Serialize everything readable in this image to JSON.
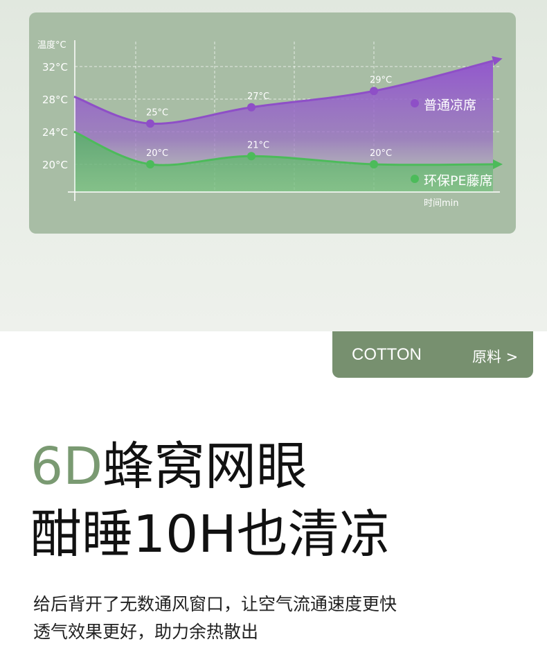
{
  "chart_data": {
    "type": "area",
    "ylabel": "温度°C",
    "xlabel": "时间min",
    "yticks": [
      "32°C",
      "28°C",
      "24°C",
      "20°C"
    ],
    "ytick_values": [
      32,
      28,
      24,
      20
    ],
    "ylim": [
      17,
      35
    ],
    "grid": true,
    "legend": "right",
    "series": [
      {
        "name": "普通凉席",
        "color": "#8e4fc7",
        "values": [
          28.3,
          25,
          27,
          29,
          32.7
        ],
        "labels": [
          "",
          "25°C",
          "27°C",
          "29°C",
          ""
        ]
      },
      {
        "name": "环保PE藤席",
        "color": "#4cbb5a",
        "values": [
          24,
          20,
          21,
          20,
          20
        ],
        "labels": [
          "",
          "20°C",
          "21°C",
          "20°C",
          ""
        ]
      }
    ]
  },
  "button": {
    "en": "COTTON",
    "cn": "原料 >"
  },
  "headline": {
    "accent": "6D",
    "line1": "蜂窝网眼",
    "line2": "酣睡10H也清凉"
  },
  "body": {
    "line1": "给后背开了无数通风窗口，让空气流通速度更快",
    "line2": "透气效果更好，助力余热散出"
  }
}
